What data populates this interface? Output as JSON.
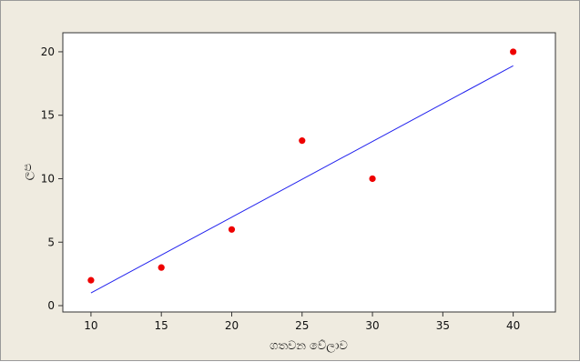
{
  "chart_data": {
    "type": "scatter",
    "xlabel": "ගතවන වේලාව",
    "ylabel": "ලප",
    "xlim": [
      8,
      43
    ],
    "ylim": [
      -0.5,
      21.5
    ],
    "x_ticks": [
      10,
      15,
      20,
      25,
      30,
      35,
      40
    ],
    "y_ticks": [
      0,
      5,
      10,
      15,
      20
    ],
    "grid": false,
    "series": [
      {
        "points": [
          {
            "x": 10,
            "y": 2
          },
          {
            "x": 15,
            "y": 3
          },
          {
            "x": 20,
            "y": 6
          },
          {
            "x": 25,
            "y": 13
          },
          {
            "x": 30,
            "y": 10
          },
          {
            "x": 40,
            "y": 20
          }
        ]
      }
    ],
    "fit_line": {
      "x": [
        10,
        40
      ],
      "y": [
        1.0,
        18.9
      ]
    },
    "colors": {
      "points": "#ee0000",
      "fit_line": "#2222ee",
      "plot_bg": "#ffffff",
      "frame_bg": "#efebe0"
    }
  }
}
